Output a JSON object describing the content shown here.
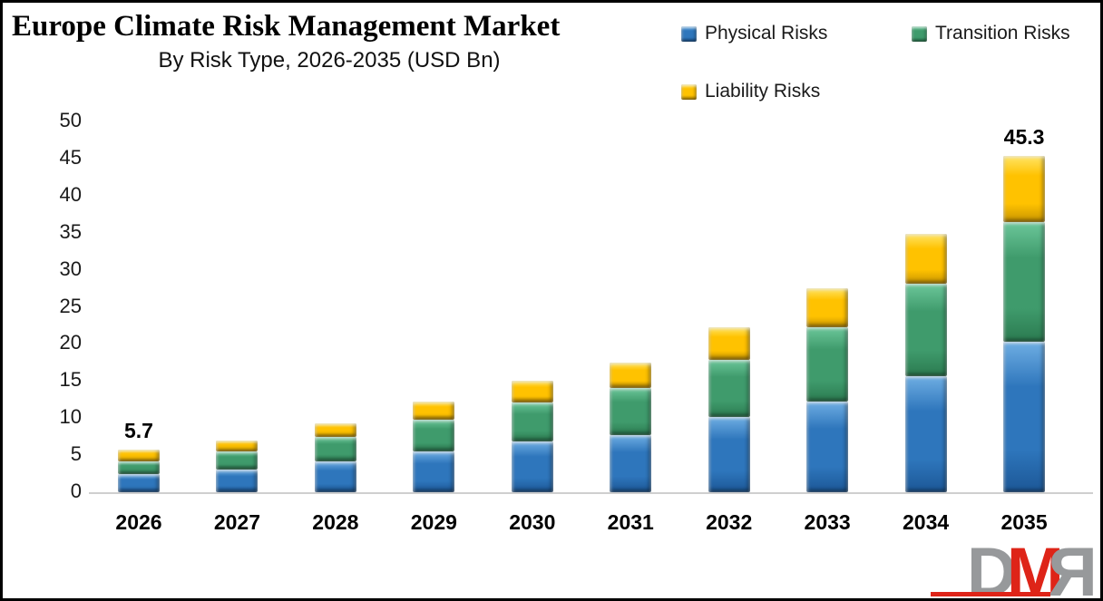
{
  "header": {
    "title": "Europe Climate Risk Management Market",
    "subtitle": "By Risk Type, 2026-2035 (USD Bn)"
  },
  "legend": {
    "items": [
      {
        "label": "Physical Risks"
      },
      {
        "label": "Transition Risks"
      },
      {
        "label": "Liability Risks"
      }
    ]
  },
  "chart_data": {
    "type": "bar",
    "stacked": true,
    "title": "Europe Climate Risk Management Market",
    "subtitle": "By Risk Type, 2026-2035 (USD Bn)",
    "unit": "USD Bn",
    "categories": [
      "2026",
      "2027",
      "2028",
      "2029",
      "2030",
      "2031",
      "2032",
      "2033",
      "2034",
      "2035"
    ],
    "series": [
      {
        "name": "Physical Risks",
        "color": "#2E76BC",
        "color_light": "#6FAEE3",
        "color_dark": "#1C5796",
        "values": [
          2.4,
          3.1,
          4.1,
          5.5,
          6.8,
          7.7,
          10.1,
          12.2,
          15.6,
          20.3
        ]
      },
      {
        "name": "Transition Risks",
        "color": "#3F9B6C",
        "color_light": "#6CC79A",
        "color_dark": "#2B7A50",
        "values": [
          1.8,
          2.4,
          3.3,
          4.3,
          5.3,
          6.3,
          7.8,
          10.0,
          12.5,
          16.1
        ]
      },
      {
        "name": "Liability Risks",
        "color": "#FFC200",
        "color_light": "#FFE566",
        "color_dark": "#C79400",
        "values": [
          1.5,
          1.5,
          1.9,
          2.4,
          2.9,
          3.5,
          4.4,
          5.3,
          6.7,
          8.9
        ]
      }
    ],
    "totals": [
      5.7,
      7.0,
      9.3,
      12.2,
      15.0,
      17.5,
      22.3,
      27.5,
      34.8,
      45.3
    ],
    "bar_labels": [
      {
        "index": 0,
        "text": "5.7"
      },
      {
        "index": 9,
        "text": "45.3"
      }
    ],
    "ylim": [
      0,
      50
    ],
    "yticks": [
      0,
      5,
      10,
      15,
      20,
      25,
      30,
      35,
      40,
      45,
      50
    ],
    "grid": false,
    "legend_position": "top-right"
  },
  "logo": {
    "letter_d": "D",
    "letter_m": "M",
    "letter_r": "R"
  }
}
